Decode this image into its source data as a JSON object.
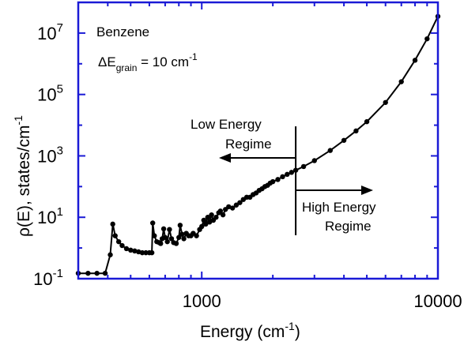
{
  "chart_data": {
    "type": "line",
    "xlabel": "Energy (cm",
    "xlabel_sup": "-1",
    "xlabel_close": ")",
    "ylabel": "ρ(E), states/cm",
    "ylabel_sup": "-1",
    "xscale": "log",
    "yscale": "log",
    "xlim": [
      300,
      10000
    ],
    "ylim": [
      0.1,
      100000000
    ],
    "x_ticks": [
      {
        "value": 1000,
        "label": "1000"
      },
      {
        "value": 10000,
        "label": "10000"
      }
    ],
    "y_ticks": [
      {
        "value": 0.1,
        "base": "10",
        "exp": "-1"
      },
      {
        "value": 10,
        "base": "10",
        "exp": "1"
      },
      {
        "value": 1000,
        "base": "10",
        "exp": "3"
      },
      {
        "value": 100000,
        "base": "10",
        "exp": "5"
      },
      {
        "value": 10000000,
        "base": "10",
        "exp": "7"
      }
    ],
    "grid": false,
    "annotations": {
      "molecule": "Benzene",
      "grain_prefix": "ΔE",
      "grain_sub": "grain",
      "grain_value": " = 10 cm",
      "grain_sup": "-1",
      "low_line1": "Low Energy",
      "low_line2": "Regime",
      "high_line1": "High Energy",
      "high_line2": "Regime",
      "boundary_energy": 2500
    },
    "colors": {
      "frame": "#1a1ad6",
      "series": "#000000"
    },
    "series": [
      {
        "values": [
          [
            300,
            0.15
          ],
          [
            330,
            0.15
          ],
          [
            360,
            0.15
          ],
          [
            390,
            0.15
          ],
          [
            410,
            0.6
          ],
          [
            420,
            6
          ],
          [
            430,
            2.5
          ],
          [
            445,
            1.6
          ],
          [
            460,
            1.2
          ],
          [
            480,
            0.95
          ],
          [
            500,
            0.85
          ],
          [
            520,
            0.8
          ],
          [
            540,
            0.75
          ],
          [
            560,
            0.7
          ],
          [
            580,
            0.7
          ],
          [
            600,
            0.7
          ],
          [
            615,
            0.7
          ],
          [
            620,
            6.5
          ],
          [
            630,
            2.5
          ],
          [
            645,
            1.6
          ],
          [
            660,
            1.5
          ],
          [
            670,
            1.4
          ],
          [
            680,
            2
          ],
          [
            690,
            4.2
          ],
          [
            700,
            2.2
          ],
          [
            715,
            1.6
          ],
          [
            730,
            4
          ],
          [
            745,
            2
          ],
          [
            760,
            1.5
          ],
          [
            780,
            1.4
          ],
          [
            800,
            2.2
          ],
          [
            810,
            5.5
          ],
          [
            825,
            2.8
          ],
          [
            840,
            2
          ],
          [
            860,
            3
          ],
          [
            880,
            2.5
          ],
          [
            900,
            2.5
          ],
          [
            920,
            3
          ],
          [
            950,
            2.5
          ],
          [
            980,
            4
          ],
          [
            1000,
            5
          ],
          [
            1020,
            8
          ],
          [
            1040,
            6
          ],
          [
            1060,
            10
          ],
          [
            1080,
            7
          ],
          [
            1100,
            12
          ],
          [
            1120,
            8
          ],
          [
            1150,
            10
          ],
          [
            1180,
            14
          ],
          [
            1200,
            16
          ],
          [
            1230,
            12
          ],
          [
            1260,
            18
          ],
          [
            1300,
            22
          ],
          [
            1350,
            20
          ],
          [
            1400,
            25
          ],
          [
            1450,
            30
          ],
          [
            1500,
            38
          ],
          [
            1550,
            45
          ],
          [
            1600,
            45
          ],
          [
            1650,
            55
          ],
          [
            1700,
            62
          ],
          [
            1750,
            75
          ],
          [
            1800,
            85
          ],
          [
            1850,
            100
          ],
          [
            1900,
            110
          ],
          [
            1950,
            130
          ],
          [
            2000,
            145
          ],
          [
            2100,
            170
          ],
          [
            2200,
            210
          ],
          [
            2300,
            250
          ],
          [
            2400,
            290
          ],
          [
            2500,
            340
          ],
          [
            2700,
            450
          ],
          [
            3000,
            700
          ],
          [
            3500,
            1500
          ],
          [
            4000,
            3200
          ],
          [
            4500,
            6500
          ],
          [
            5000,
            13000
          ],
          [
            6000,
            55000
          ],
          [
            7000,
            260000
          ],
          [
            8000,
            1300000
          ],
          [
            9000,
            6500000
          ],
          [
            10000,
            35000000
          ]
        ]
      }
    ]
  }
}
